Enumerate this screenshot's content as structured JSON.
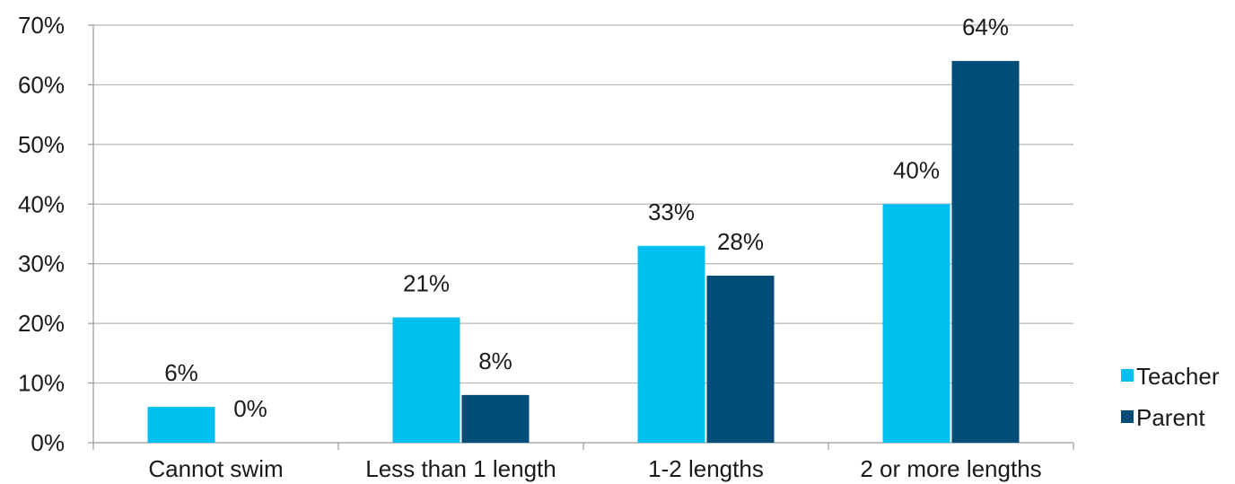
{
  "chart_data": {
    "type": "bar",
    "categories": [
      "Cannot swim",
      "Less than 1 length",
      "1-2 lengths",
      "2 or more lengths"
    ],
    "series": [
      {
        "name": "Teacher",
        "values": [
          6,
          21,
          33,
          40
        ],
        "labels": [
          "6%",
          "21%",
          "33%",
          "40%"
        ],
        "color": "#00c0ef"
      },
      {
        "name": "Parent",
        "values": [
          0,
          8,
          28,
          64
        ],
        "labels": [
          "0%",
          "8%",
          "28%",
          "64%"
        ],
        "color": "#004d7a"
      }
    ],
    "yticks": [
      "0%",
      "10%",
      "20%",
      "30%",
      "40%",
      "50%",
      "60%",
      "70%"
    ],
    "ylim": [
      0,
      70
    ],
    "grid": true,
    "legend": "right"
  }
}
